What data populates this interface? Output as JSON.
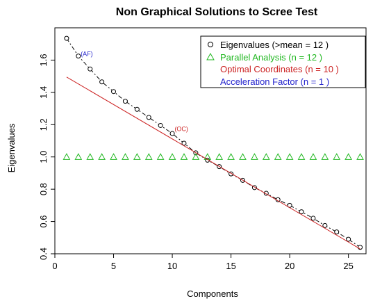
{
  "chart_data": {
    "type": "scatter",
    "title": "Non Graphical Solutions to Scree Test",
    "xlabel": "Components",
    "ylabel": "Eigenvalues",
    "xlim": [
      0,
      26.5
    ],
    "ylim": [
      0.4,
      1.8
    ],
    "xticks": [
      0,
      5,
      10,
      15,
      20,
      25
    ],
    "yticks": [
      0.4,
      0.6,
      0.8,
      1.0,
      1.2,
      1.4,
      1.6
    ],
    "ytick_labels": [
      "0.4",
      "0.6",
      "0.8",
      "1.0",
      "1.2",
      "1.4",
      "1.6"
    ],
    "grid": false,
    "legend_position": "top-right",
    "legend": [
      {
        "label": "Eigenvalues (>mean  =  12 )",
        "color": "#000000",
        "marker": "circle"
      },
      {
        "label": "Parallel Analysis (n =  12 )",
        "color": "#22b822",
        "marker": "triangle"
      },
      {
        "label": "Optimal Coordinates (n =  10 )",
        "color": "#cc2222",
        "marker": "none"
      },
      {
        "label": "Acceleration Factor (n =  1 )",
        "color": "#2222cc",
        "marker": "none"
      }
    ],
    "series": [
      {
        "name": "Eigenvalues",
        "color": "#000000",
        "marker": "circle",
        "line": "dashed",
        "x": [
          1,
          2,
          3,
          4,
          5,
          6,
          7,
          8,
          9,
          10,
          11,
          12,
          13,
          14,
          15,
          16,
          17,
          18,
          19,
          20,
          21,
          22,
          23,
          24,
          25,
          26
        ],
        "y": [
          1.735,
          1.625,
          1.545,
          1.465,
          1.405,
          1.345,
          1.295,
          1.245,
          1.195,
          1.145,
          1.085,
          1.025,
          0.98,
          0.94,
          0.895,
          0.855,
          0.81,
          0.775,
          0.735,
          0.7,
          0.66,
          0.62,
          0.575,
          0.535,
          0.49,
          0.44
        ]
      },
      {
        "name": "Parallel Analysis",
        "color": "#22b822",
        "marker": "triangle",
        "x": [
          1,
          2,
          3,
          4,
          5,
          6,
          7,
          8,
          9,
          10,
          11,
          12,
          13,
          14,
          15,
          16,
          17,
          18,
          19,
          20,
          21,
          22,
          23,
          24,
          25,
          26
        ],
        "y": [
          1.0,
          1.0,
          1.0,
          1.0,
          1.0,
          1.0,
          1.0,
          1.0,
          1.0,
          1.0,
          1.0,
          1.0,
          1.0,
          1.0,
          1.0,
          1.0,
          1.0,
          1.0,
          1.0,
          1.0,
          1.0,
          1.0,
          1.0,
          1.0,
          1.0,
          1.0
        ]
      },
      {
        "name": "Optimal Coordinates",
        "color": "#cc2222",
        "marker": "none",
        "x": [
          1,
          26
        ],
        "y": [
          1.495,
          0.43
        ]
      }
    ],
    "annotations": [
      {
        "text": "(AF)",
        "x": 2.2,
        "y": 1.625,
        "color": "#2222cc"
      },
      {
        "text": "(OC)",
        "x": 10.2,
        "y": 1.16,
        "color": "#cc2222"
      }
    ]
  }
}
